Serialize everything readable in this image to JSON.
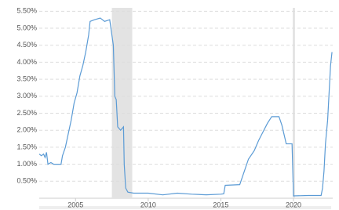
{
  "chart_data": {
    "type": "line",
    "x": [
      2002.5,
      2002.65,
      2002.8,
      2002.9,
      2003.0,
      2003.1,
      2003.3,
      2003.5,
      2004.0,
      2004.1,
      2004.3,
      2004.5,
      2004.7,
      2004.9,
      2005.1,
      2005.3,
      2005.5,
      2005.7,
      2005.9,
      2006.0,
      2006.3,
      2006.7,
      2007.0,
      2007.35,
      2007.5,
      2007.6,
      2007.7,
      2007.8,
      2007.9,
      2008.1,
      2008.3,
      2008.35,
      2008.45,
      2008.6,
      2009.0,
      2010.0,
      2011.0,
      2012.0,
      2013.0,
      2014.0,
      2015.0,
      2015.2,
      2015.3,
      2016.3,
      2016.5,
      2016.9,
      2017.3,
      2017.6,
      2017.9,
      2018.2,
      2018.5,
      2019.0,
      2019.2,
      2019.5,
      2019.9,
      2020.0,
      2021.0,
      2021.9,
      2022.0,
      2022.1,
      2022.2,
      2022.35,
      2022.45,
      2022.55,
      2022.65
    ],
    "series": [
      {
        "color": "#5b9bd5",
        "values": [
          1.3,
          1.25,
          1.3,
          1.2,
          1.35,
          1.0,
          1.05,
          1.0,
          1.0,
          1.25,
          1.5,
          1.9,
          2.3,
          2.8,
          3.1,
          3.6,
          3.9,
          4.3,
          4.8,
          5.2,
          5.25,
          5.3,
          5.2,
          5.25,
          4.8,
          4.5,
          3.0,
          2.9,
          2.1,
          2.0,
          2.1,
          1.0,
          0.3,
          0.18,
          0.15,
          0.15,
          0.1,
          0.15,
          0.12,
          0.1,
          0.12,
          0.13,
          0.38,
          0.4,
          0.65,
          1.15,
          1.4,
          1.7,
          1.95,
          2.2,
          2.4,
          2.4,
          2.15,
          1.6,
          1.6,
          0.07,
          0.08,
          0.08,
          0.3,
          0.8,
          1.6,
          2.3,
          3.1,
          3.9,
          4.3
        ]
      }
    ],
    "shaded_regions": [
      [
        2007.5,
        2008.9
      ],
      [
        2019.95,
        2020.1
      ]
    ],
    "shade_color": "#e3e3e3",
    "xlim": [
      2002.5,
      2022.7
    ],
    "xticks": [
      2005,
      2010,
      2015,
      2020
    ],
    "ylim": [
      0,
      5.6
    ],
    "yticks": [
      {
        "value": 0.5,
        "label": "0.50%"
      },
      {
        "value": 1.0,
        "label": "1.00%"
      },
      {
        "value": 1.5,
        "label": "1.50%"
      },
      {
        "value": 2.0,
        "label": "2.00%"
      },
      {
        "value": 2.5,
        "label": "2.50%"
      },
      {
        "value": 3.0,
        "label": "3.00%"
      },
      {
        "value": 3.5,
        "label": "3.50%"
      },
      {
        "value": 4.0,
        "label": "4.00%"
      },
      {
        "value": 4.5,
        "label": "4.50%"
      },
      {
        "value": 5.0,
        "label": "5.00%"
      },
      {
        "value": 5.5,
        "label": "5.50%"
      }
    ],
    "grid": true
  }
}
